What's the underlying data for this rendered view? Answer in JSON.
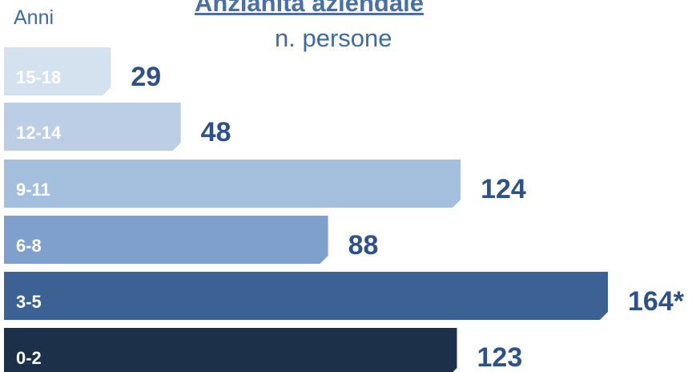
{
  "chart_data": {
    "type": "bar",
    "orientation": "horizontal",
    "title": "Anzianità aziendale",
    "subtitle": "n. persone",
    "ylabel": "Anni",
    "categories": [
      "15-18",
      "12-14",
      "9-11",
      "6-8",
      "3-5",
      "0-2"
    ],
    "values": [
      29,
      48,
      124,
      88,
      164,
      123
    ],
    "value_labels": [
      "29",
      "48",
      "124",
      "88",
      "164*",
      "123"
    ],
    "xlim": [
      0,
      164
    ],
    "grid": false,
    "legend": "none",
    "colors": [
      "#d4e1ef",
      "#bccde6",
      "#a4bfde",
      "#7fa0cd",
      "#3c6193",
      "#1d304a"
    ],
    "label_colors": [
      "#ffffff",
      "#ffffff",
      "#ffffff",
      "#ffffff",
      "#ffffff",
      "#ffffff"
    ],
    "value_label_color": "#2e5188"
  }
}
